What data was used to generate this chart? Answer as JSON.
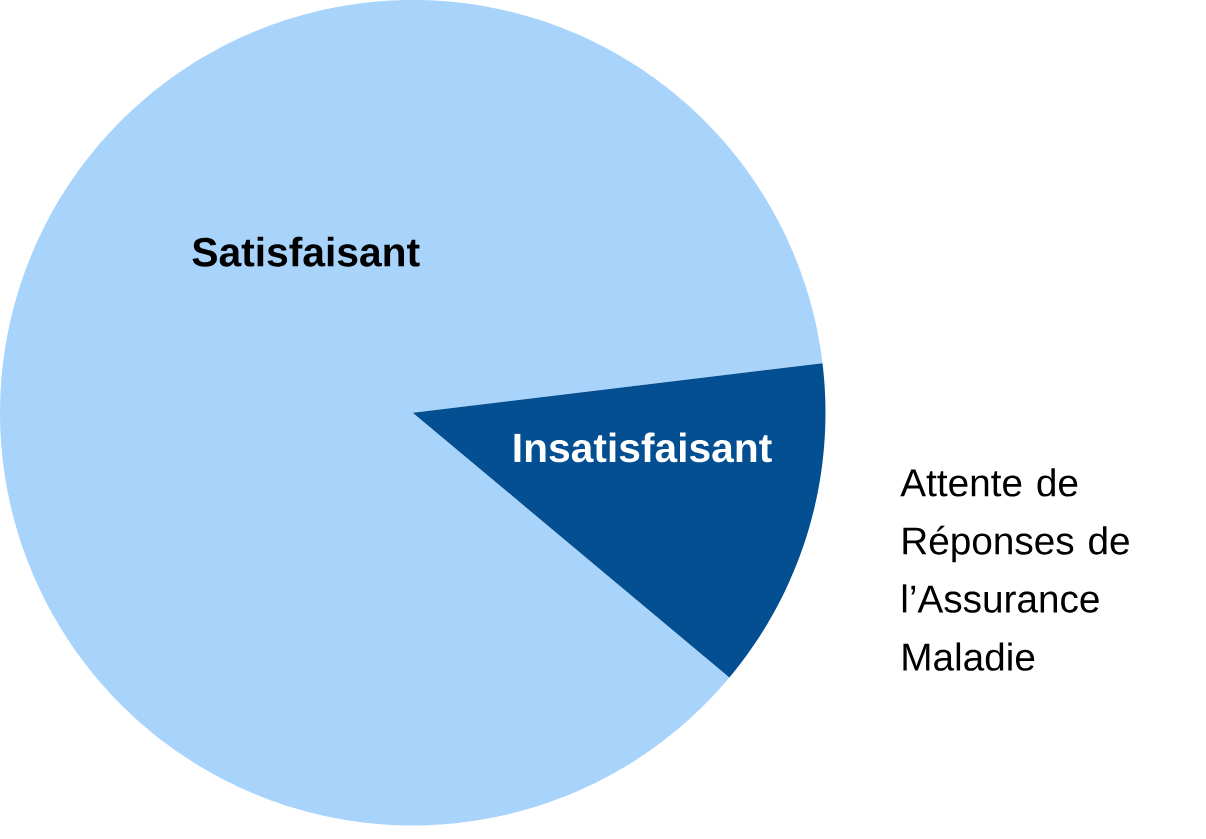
{
  "chart_data": {
    "type": "pie",
    "title": "Attente de Réponses de l’Assurance Maladie",
    "categories": [
      "Satisfaisant",
      "Insatisfaisant"
    ],
    "values": [
      87,
      13
    ],
    "colors": [
      "#a8d4fc",
      "#034f91"
    ]
  }
}
